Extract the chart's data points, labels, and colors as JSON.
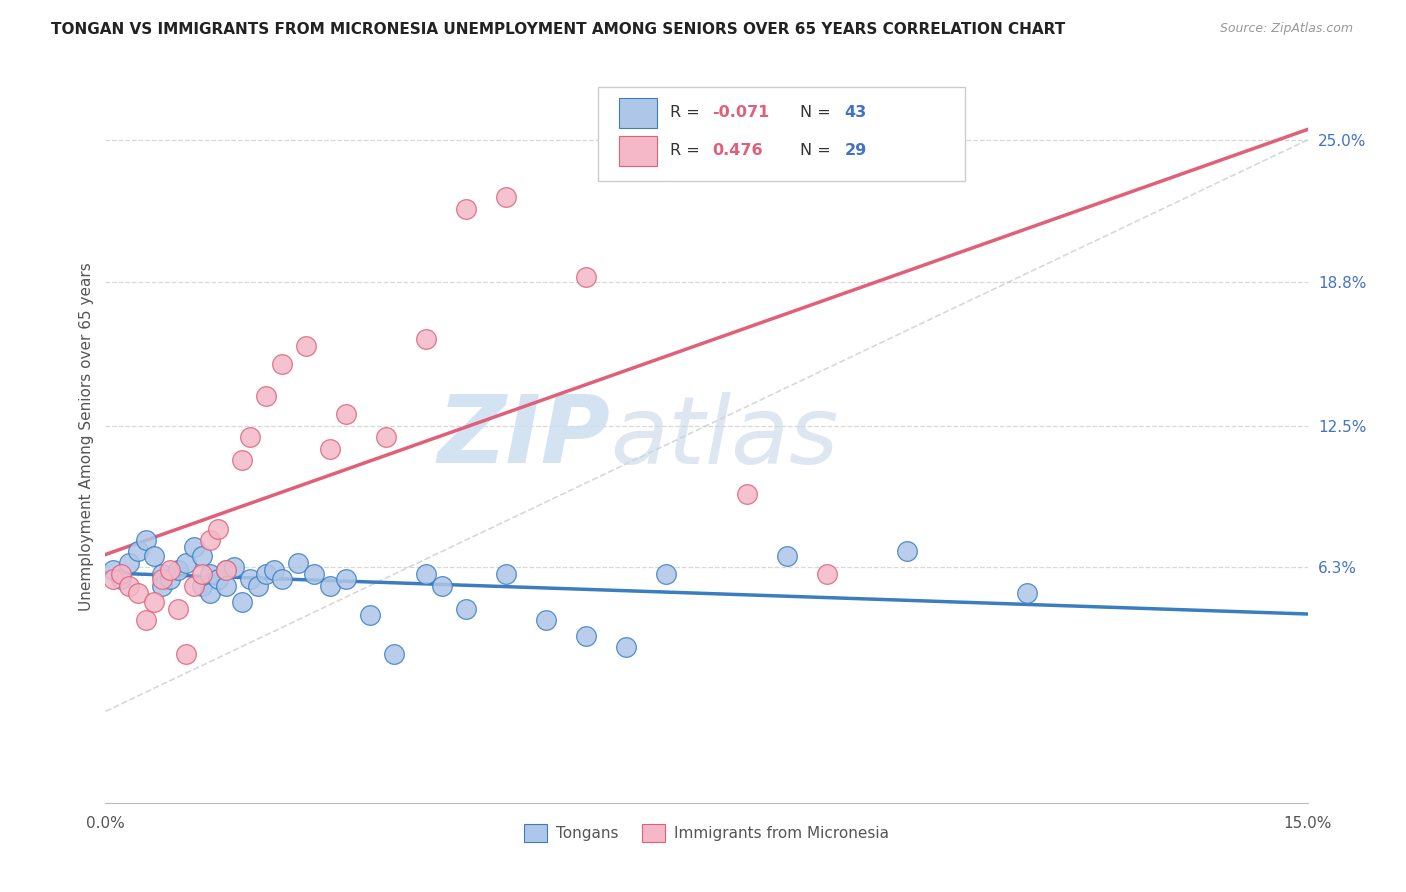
{
  "title": "TONGAN VS IMMIGRANTS FROM MICRONESIA UNEMPLOYMENT AMONG SENIORS OVER 65 YEARS CORRELATION CHART",
  "source": "Source: ZipAtlas.com",
  "ylabel": "Unemployment Among Seniors over 65 years",
  "watermark_zip": "ZIP",
  "watermark_atlas": "atlas",
  "legend1_label": "Tongans",
  "legend2_label": "Immigrants from Micronesia",
  "R1": "-0.071",
  "N1": "43",
  "R2": "0.476",
  "N2": "29",
  "color_tongans": "#aec6e8",
  "color_micronesia": "#f4b8c8",
  "line_color_tongans": "#3a7ebf",
  "line_color_micronesia": "#e0607a",
  "line_color_diagonal": "#c8c8c8",
  "background_color": "#ffffff",
  "tongans_x": [
    0.001,
    0.002,
    0.003,
    0.004,
    0.005,
    0.006,
    0.007,
    0.007,
    0.008,
    0.009,
    0.01,
    0.011,
    0.012,
    0.012,
    0.013,
    0.013,
    0.014,
    0.015,
    0.015,
    0.016,
    0.017,
    0.018,
    0.019,
    0.02,
    0.021,
    0.022,
    0.024,
    0.026,
    0.028,
    0.03,
    0.033,
    0.036,
    0.04,
    0.042,
    0.045,
    0.05,
    0.055,
    0.06,
    0.065,
    0.07,
    0.085,
    0.1,
    0.115
  ],
  "tongans_y": [
    0.062,
    0.058,
    0.065,
    0.07,
    0.075,
    0.068,
    0.06,
    0.055,
    0.058,
    0.062,
    0.065,
    0.072,
    0.055,
    0.068,
    0.06,
    0.052,
    0.058,
    0.062,
    0.055,
    0.063,
    0.048,
    0.058,
    0.055,
    0.06,
    0.062,
    0.058,
    0.065,
    0.06,
    0.055,
    0.058,
    0.042,
    0.025,
    0.06,
    0.055,
    0.045,
    0.06,
    0.04,
    0.033,
    0.028,
    0.06,
    0.068,
    0.07,
    0.052
  ],
  "micronesia_x": [
    0.001,
    0.002,
    0.003,
    0.004,
    0.005,
    0.006,
    0.007,
    0.008,
    0.009,
    0.01,
    0.011,
    0.012,
    0.013,
    0.014,
    0.015,
    0.017,
    0.018,
    0.02,
    0.022,
    0.025,
    0.028,
    0.03,
    0.035,
    0.04,
    0.045,
    0.05,
    0.06,
    0.08,
    0.09
  ],
  "micronesia_y": [
    0.058,
    0.06,
    0.055,
    0.052,
    0.04,
    0.048,
    0.058,
    0.062,
    0.045,
    0.025,
    0.055,
    0.06,
    0.075,
    0.08,
    0.062,
    0.11,
    0.12,
    0.138,
    0.152,
    0.16,
    0.115,
    0.13,
    0.12,
    0.163,
    0.22,
    0.225,
    0.19,
    0.095,
    0.06
  ],
  "xlim": [
    0.0,
    0.15
  ],
  "ylim": [
    -0.04,
    0.28
  ]
}
